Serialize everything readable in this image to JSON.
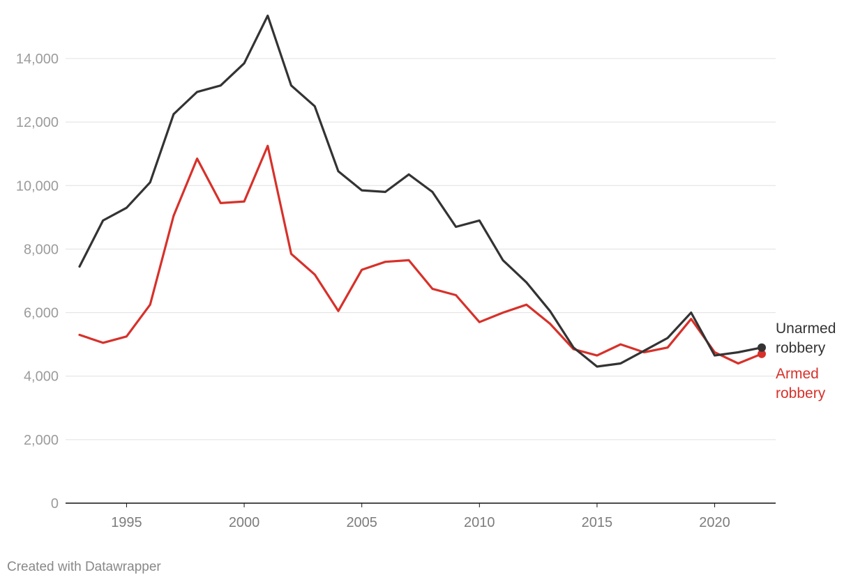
{
  "footer": {
    "credit": "Created with Datawrapper"
  },
  "colors": {
    "unarmed": "#333333",
    "armed": "#d7312a",
    "grid": "#e0e0e0",
    "axis": "#111111"
  },
  "chart_data": {
    "type": "line",
    "x": [
      1993,
      1994,
      1995,
      1996,
      1997,
      1998,
      1999,
      2000,
      2001,
      2002,
      2003,
      2004,
      2005,
      2006,
      2007,
      2008,
      2009,
      2010,
      2011,
      2012,
      2013,
      2014,
      2015,
      2016,
      2017,
      2018,
      2019,
      2020,
      2021,
      2022
    ],
    "series": [
      {
        "name": "Unarmed robbery",
        "label_lines": [
          "Unarmed",
          "robbery"
        ],
        "color": "#333333",
        "values": [
          7450,
          8900,
          9300,
          10100,
          12250,
          12950,
          13150,
          13850,
          15350,
          13150,
          12500,
          10450,
          9850,
          9800,
          10350,
          9800,
          8700,
          8900,
          7650,
          6950,
          6050,
          4900,
          4300,
          4400,
          4800,
          5200,
          6000,
          4650,
          4750,
          4900
        ]
      },
      {
        "name": "Armed robbery",
        "label_lines": [
          "Armed",
          "robbery"
        ],
        "color": "#d7312a",
        "values": [
          5300,
          5050,
          5250,
          6250,
          9050,
          10850,
          9450,
          9500,
          11250,
          7850,
          7200,
          6050,
          7350,
          7600,
          7650,
          6750,
          6550,
          5700,
          6000,
          6250,
          5650,
          4850,
          4650,
          5000,
          4750,
          4900,
          5800,
          4750,
          4400,
          4700
        ]
      }
    ],
    "xticks": [
      "1995",
      "2000",
      "2005",
      "2010",
      "2015",
      "2020"
    ],
    "yticks": [
      "0",
      "2,000",
      "4,000",
      "6,000",
      "8,000",
      "10,000",
      "12,000",
      "14,000"
    ],
    "ylim": [
      0,
      15400
    ],
    "xlim": [
      1993,
      2022
    ],
    "grid": "horizontal"
  }
}
